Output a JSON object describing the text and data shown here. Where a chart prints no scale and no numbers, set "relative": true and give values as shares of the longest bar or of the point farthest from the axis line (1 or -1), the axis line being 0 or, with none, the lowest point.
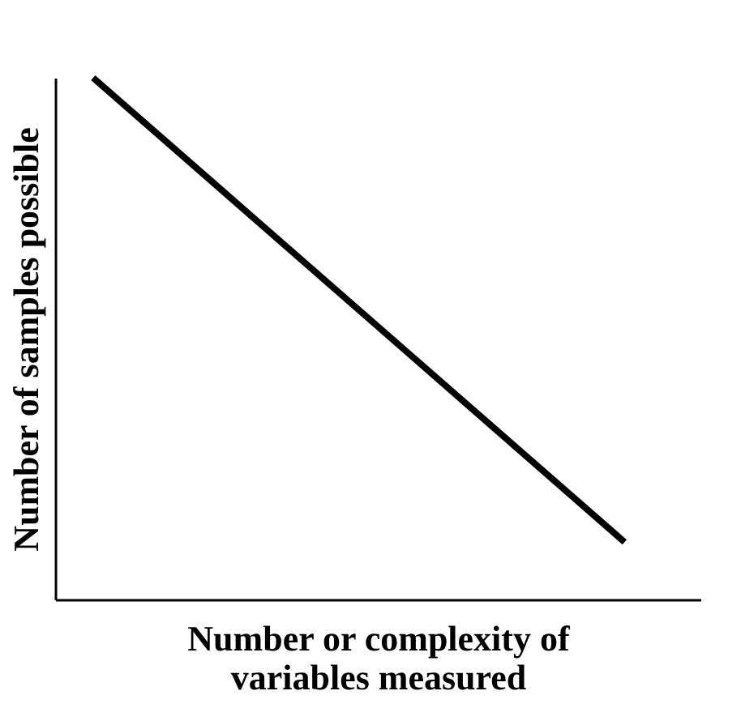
{
  "chart_data": {
    "type": "line",
    "relative": true,
    "categories": [
      null,
      null,
      null,
      null,
      null,
      null,
      null,
      null,
      null,
      null,
      null,
      null,
      null,
      null,
      null,
      null,
      null,
      null
    ],
    "series": [
      {
        "color": "#000000",
        "values": [
          null,
          1,
          null,
          null,
          null,
          null,
          null,
          null,
          null,
          null,
          null,
          null,
          null,
          null,
          null,
          0.11,
          null,
          null
        ]
      }
    ],
    "xlabel": "Number or complexity of\nvariables measured",
    "ylabel": "Number of samples possible",
    "legend": false,
    "grid": false,
    "marker": "none",
    "line_style": "solid"
  }
}
